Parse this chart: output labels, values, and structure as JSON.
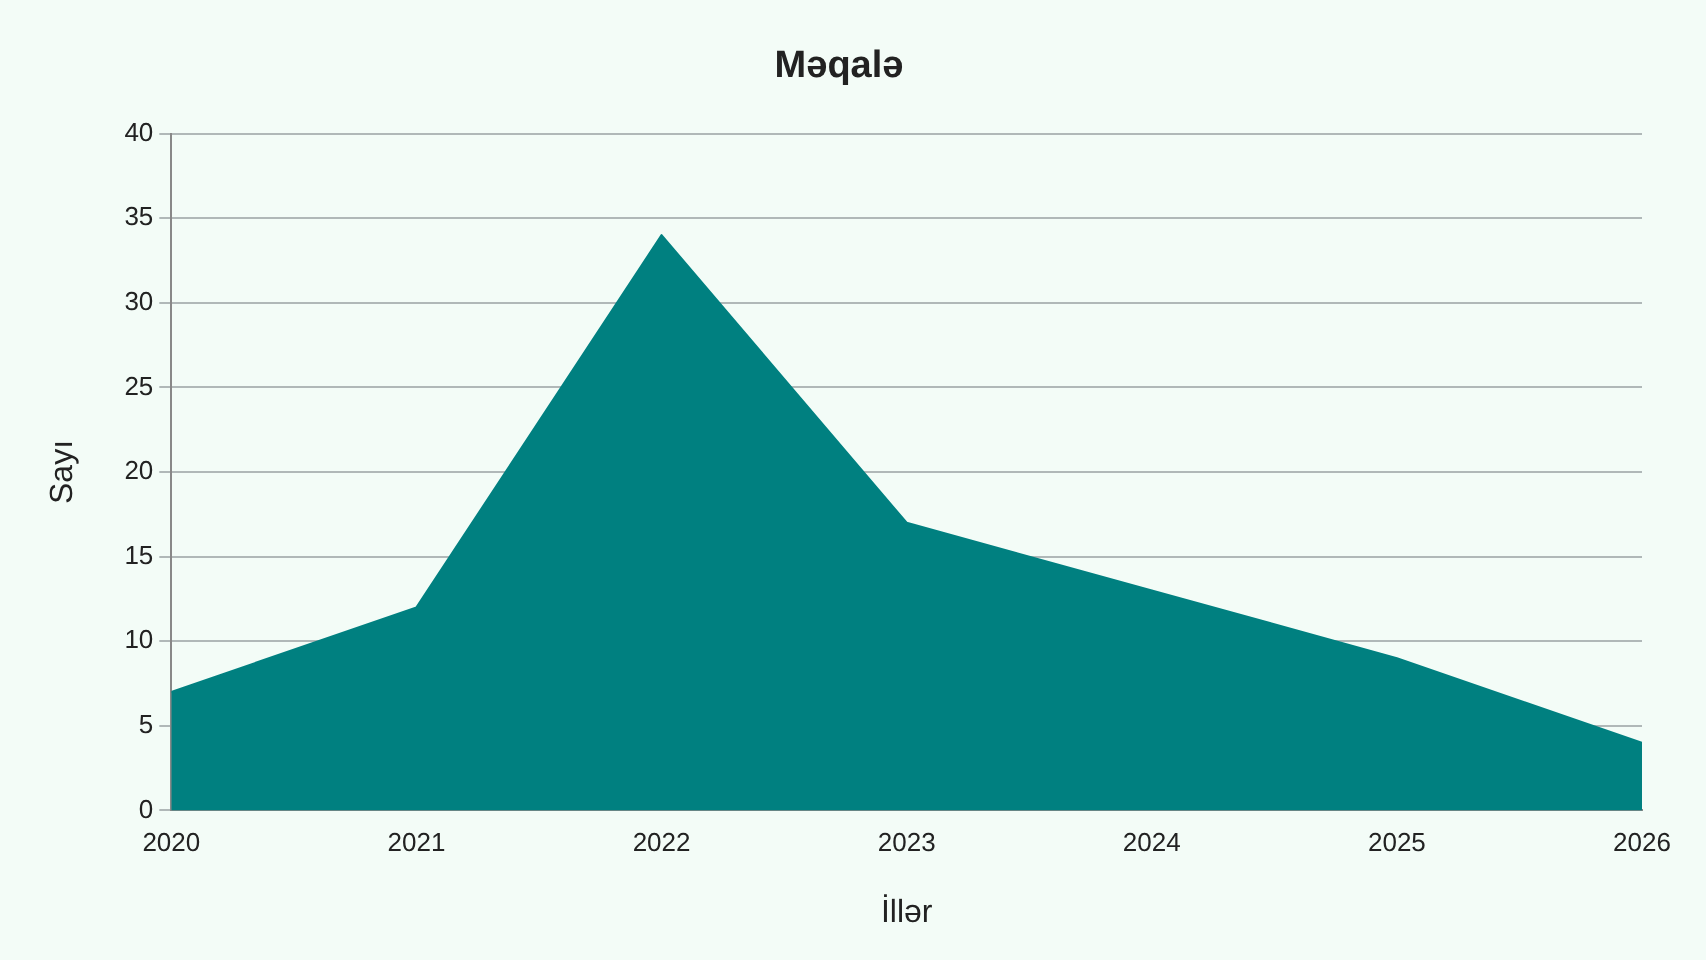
{
  "chart_data": {
    "type": "area",
    "title": "Məqalə",
    "xlabel": "İllər",
    "ylabel": "Sayı",
    "x": [
      2020,
      2021,
      2022,
      2023,
      2024,
      2025,
      2026
    ],
    "series": [
      {
        "color": "#008080",
        "values": [
          7,
          12,
          34,
          17,
          13,
          9,
          4
        ]
      }
    ],
    "xlim": [
      2020,
      2026
    ],
    "xticks": [
      2020,
      2021,
      2022,
      2023,
      2024,
      2025,
      2026
    ],
    "ylim": [
      0,
      40
    ],
    "yticks": [
      0,
      5,
      10,
      15,
      20,
      25,
      30,
      35,
      40
    ],
    "grid": "y",
    "legend": false
  }
}
